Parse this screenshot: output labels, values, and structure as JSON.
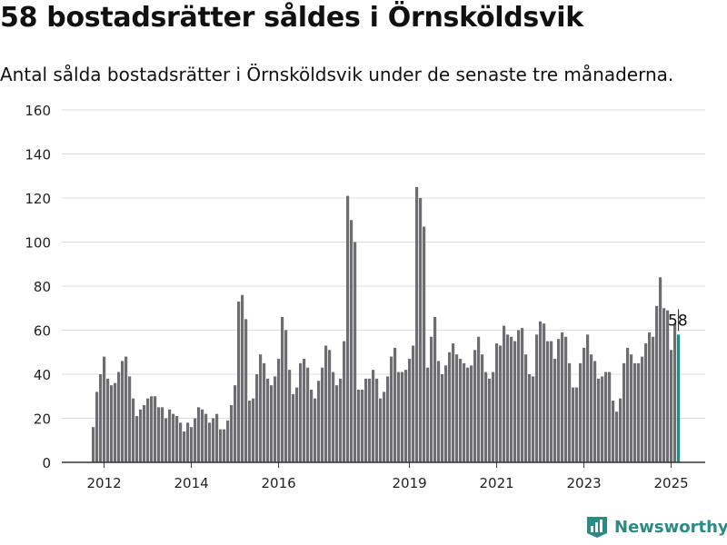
{
  "header": {
    "title": "58 bostadsrätter såldes i Örnsköldsvik",
    "subtitle": "Antal sålda bostadsrätter i Örnsköldsvik under de senaste tre månaderna."
  },
  "brand": {
    "name": "Newsworthy",
    "color": "#2a8a84",
    "icon": "bar-chart-logo-icon"
  },
  "colors": {
    "bar": "#6e6d72",
    "highlight": "#1b8f7f",
    "grid": "#dcdcdc",
    "axis": "#333333"
  },
  "chart_data": {
    "type": "bar",
    "xlabel": "",
    "ylabel": "",
    "ylim": [
      0,
      160
    ],
    "yticks": [
      0,
      20,
      40,
      60,
      80,
      100,
      120,
      140,
      160
    ],
    "xticks": [
      "2012",
      "2014",
      "2016",
      "2019",
      "2021",
      "2023",
      "2025"
    ],
    "grid": true,
    "legend": "none",
    "annotation": "58",
    "series": [
      {
        "values": [
          16,
          32,
          40,
          48,
          38,
          35,
          36,
          41,
          46,
          48,
          39,
          29,
          21,
          24,
          26,
          29,
          30,
          30,
          25,
          25,
          20,
          24,
          22,
          21,
          18,
          14,
          18,
          16,
          20,
          25,
          24,
          22,
          18,
          20,
          22,
          15,
          15,
          19,
          26,
          35,
          73,
          76,
          65,
          28,
          29,
          40,
          49,
          45,
          38,
          35,
          39,
          47,
          66,
          60,
          42,
          31,
          34,
          45,
          47,
          43,
          33,
          29,
          37,
          43,
          53,
          51,
          41,
          35,
          38,
          55,
          121,
          110,
          100,
          33,
          33,
          38,
          38,
          42,
          38,
          29,
          32,
          39,
          48,
          52,
          41,
          41,
          42,
          47,
          53,
          125,
          120,
          107,
          43,
          57,
          66,
          46,
          40,
          44,
          50,
          54,
          49,
          47,
          45,
          43,
          44,
          51,
          57,
          49,
          41,
          38,
          41,
          54,
          53,
          62,
          58,
          57,
          55,
          60,
          61,
          49,
          40,
          39,
          58,
          64,
          63,
          55,
          55,
          47,
          56,
          59,
          57,
          45,
          34,
          34,
          45,
          52,
          58,
          49,
          46,
          38,
          39,
          41,
          41,
          28,
          23,
          29,
          45,
          52,
          49,
          45,
          45,
          48,
          54,
          59,
          57,
          71,
          84,
          70,
          69,
          51,
          63,
          58
        ]
      }
    ]
  }
}
